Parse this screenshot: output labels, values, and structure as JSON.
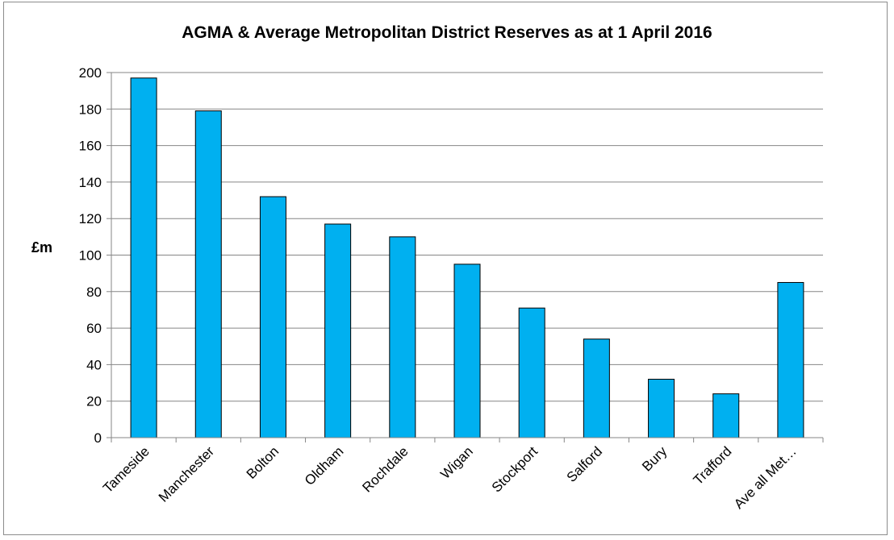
{
  "chart_data": {
    "type": "bar",
    "title": "AGMA & Average Metropolitan District Reserves as at 1 April 2016",
    "xlabel": "",
    "ylabel": "£m",
    "ylim": [
      0,
      200
    ],
    "yticks": [
      0,
      20,
      40,
      60,
      80,
      100,
      120,
      140,
      160,
      180,
      200
    ],
    "grid": true,
    "legend": "none",
    "categories": [
      "Tameside",
      "Manchester",
      "Bolton",
      "Oldham",
      "Rochdale",
      "Wigan",
      "Stockport",
      "Salford",
      "Bury",
      "Trafford",
      "Ave all Met…"
    ],
    "values": [
      197,
      179,
      132,
      117,
      110,
      95,
      71,
      54,
      32,
      24,
      85
    ],
    "colors": {
      "bar_fill": "#00b0f0",
      "bar_stroke": "#000000",
      "grid": "#868686",
      "axis": "#868686"
    }
  }
}
